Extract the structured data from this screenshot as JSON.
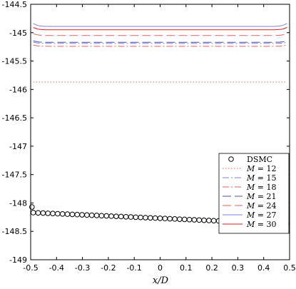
{
  "chart_data": {
    "type": "line",
    "xlabel": "x/D",
    "ylabel": "",
    "xlim": [
      -0.5,
      0.5
    ],
    "ylim": [
      -149,
      -144.5
    ],
    "x_ticks": [
      -0.5,
      -0.4,
      -0.3,
      -0.2,
      -0.1,
      0,
      0.1,
      0.2,
      0.3,
      0.4,
      0.5
    ],
    "x_tick_labels": [
      "-0.5",
      "-0.4",
      "-0.3",
      "-0.2",
      "-0.1",
      "0",
      "0.1",
      "0.2",
      "0.3",
      "0.4",
      "0.5"
    ],
    "y_ticks": [
      -144.5,
      -145,
      -145.5,
      -146,
      -146.5,
      -147,
      -147.5,
      -148,
      -148.5,
      -149
    ],
    "y_tick_labels": [
      "-144.5",
      "-145",
      "-145.5",
      "-146",
      "-146.5",
      "-147",
      "-147.5",
      "-148",
      "-148.5",
      "-149"
    ],
    "grid": false,
    "legend_position": "bottom-right",
    "scatter": {
      "name": "DSMC",
      "marker": "open-circle",
      "color": "#000000",
      "x_start": -0.49,
      "x_end": 0.49,
      "count": 53,
      "y_start": -148.17,
      "y_end": -148.37,
      "first_point": {
        "x": -0.495,
        "y": -148.07
      }
    },
    "series": [
      {
        "name": "M = 12",
        "label_math": "M",
        "label_value": "= 12",
        "color": "#e06060",
        "dash": "1.5,2.5",
        "y": -145.87,
        "edge_bump": 0.0
      },
      {
        "name": "M = 15",
        "label_math": "M",
        "label_value": "= 15",
        "color": "#7f7fd8",
        "dash": "9,3,2,3",
        "y": -145.19,
        "edge_bump": 0.04
      },
      {
        "name": "M = 18",
        "label_math": "M",
        "label_value": "= 18",
        "color": "#e06060",
        "dash": "9,3,2,3",
        "y": -145.24,
        "edge_bump": 0.04
      },
      {
        "name": "M = 21",
        "label_math": "M",
        "label_value": "= 21",
        "color": "#4f4fa8",
        "dash": "12,5",
        "y": -145.17,
        "edge_bump": 0.05
      },
      {
        "name": "M = 24",
        "label_math": "M",
        "label_value": "= 24",
        "color": "#e06060",
        "dash": "12,5",
        "y": -145.05,
        "edge_bump": 0.06
      },
      {
        "name": "M = 27",
        "label_math": "M",
        "label_value": "= 27",
        "color": "#7f7fd8",
        "dash": "",
        "y": -144.89,
        "edge_bump": 0.1
      },
      {
        "name": "M = 30",
        "label_math": "M",
        "label_value": "= 30",
        "color": "#cc2020",
        "dash": "",
        "y": -144.95,
        "edge_bump": 0.08
      }
    ]
  }
}
